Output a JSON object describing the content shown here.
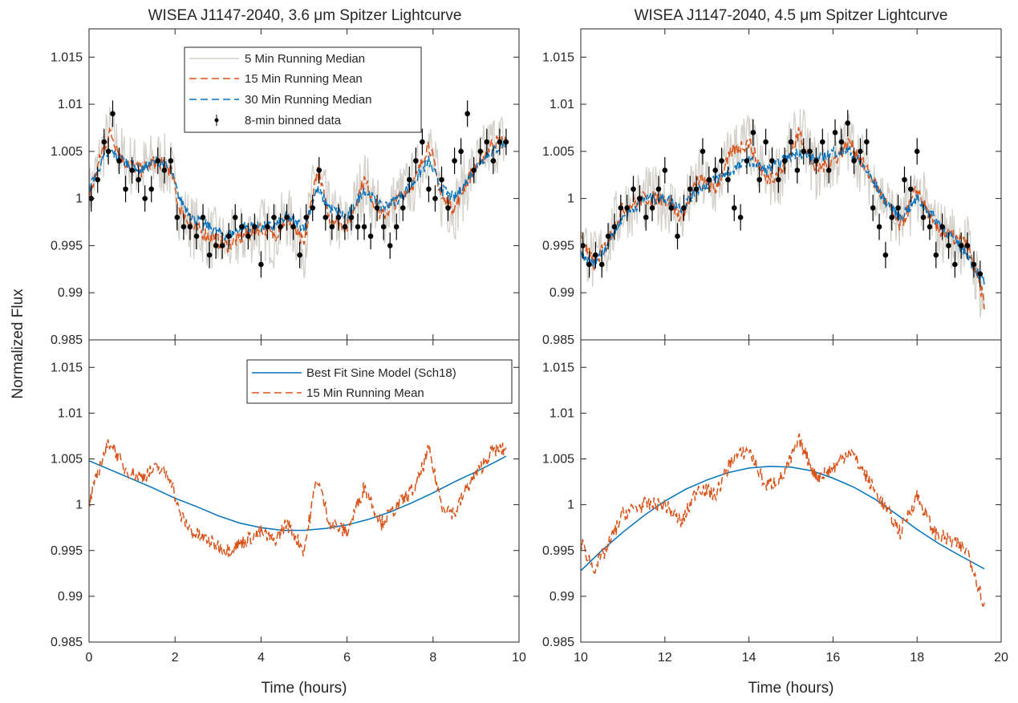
{
  "colors": {
    "median5": "#d3cfc9",
    "mean15": "#d95319",
    "median30": "#0072bd",
    "binned": "#000000",
    "model": "#0072bd",
    "axis": "#262626"
  },
  "chart_data": {
    "type": "line",
    "ylabel": "Normalized Flux",
    "ylim": [
      0.985,
      1.018
    ],
    "yticks": [
      "1.015",
      "1.01",
      "1.005",
      "1",
      "0.995",
      "0.99",
      "0.985"
    ],
    "panels": [
      {
        "id": "top-left",
        "title": "WISEA J1147-2040, 3.6 μm Spitzer Lightcurve",
        "xlim": [
          0,
          10
        ],
        "legend": [
          "5 Min Running Median",
          "15 Min Running Mean",
          "30 Min Running Median",
          "8-min binned data"
        ],
        "series": [
          {
            "name": "15 Min Running Mean",
            "style": "dashed",
            "x": [
              0,
              0.3,
              0.5,
              0.8,
              1.2,
              1.6,
              1.9,
              2.1,
              2.4,
              2.8,
              3.2,
              3.6,
              4,
              4.3,
              4.6,
              5,
              5.3,
              5.6,
              6,
              6.4,
              6.8,
              7.2,
              7.6,
              7.9,
              8.2,
              8.5,
              8.8,
              9.1,
              9.4,
              9.7
            ],
            "y": [
              1.0,
              1.005,
              1.007,
              1.004,
              1.003,
              1.004,
              1.003,
              0.999,
              0.997,
              0.996,
              0.995,
              0.996,
              0.997,
              0.996,
              0.998,
              0.995,
              1.003,
              0.998,
              0.997,
              1.002,
              0.998,
              1.0,
              1.002,
              1.006,
              1.0,
              0.999,
              1.002,
              1.004,
              1.006,
              1.006
            ]
          },
          {
            "name": "30 Min Running Median",
            "style": "dashed",
            "x": [
              0,
              0.3,
              0.5,
              0.8,
              1.2,
              1.6,
              1.9,
              2.1,
              2.4,
              2.8,
              3.2,
              3.6,
              4,
              4.3,
              4.6,
              5,
              5.3,
              5.6,
              6,
              6.4,
              6.8,
              7.2,
              7.6,
              7.9,
              8.2,
              8.5,
              8.8,
              9.1,
              9.4,
              9.7
            ],
            "y": [
              1.001,
              1.004,
              1.005,
              1.004,
              1.003,
              1.004,
              1.003,
              1.0,
              0.998,
              0.997,
              0.996,
              0.997,
              0.997,
              0.997,
              0.998,
              0.997,
              1.001,
              0.999,
              0.998,
              1.001,
              0.999,
              1.0,
              1.002,
              1.004,
              1.001,
              1.0,
              1.002,
              1.004,
              1.005,
              1.006
            ]
          },
          {
            "name": "8-min binned data",
            "style": "markers",
            "x": [
              0.05,
              0.2,
              0.35,
              0.45,
              0.55,
              0.7,
              0.85,
              1.0,
              1.15,
              1.3,
              1.45,
              1.6,
              1.75,
              1.9,
              2.05,
              2.2,
              2.35,
              2.5,
              2.65,
              2.8,
              2.95,
              3.1,
              3.25,
              3.4,
              3.55,
              3.7,
              3.85,
              4.0,
              4.15,
              4.3,
              4.45,
              4.6,
              4.75,
              4.9,
              5.05,
              5.2,
              5.35,
              5.5,
              5.65,
              5.8,
              5.95,
              6.1,
              6.25,
              6.4,
              6.55,
              6.7,
              6.85,
              7.0,
              7.15,
              7.3,
              7.45,
              7.6,
              7.75,
              7.9,
              8.05,
              8.2,
              8.35,
              8.5,
              8.65,
              8.8,
              8.95,
              9.1,
              9.25,
              9.4,
              9.55,
              9.7
            ],
            "y": [
              1.0,
              1.002,
              1.006,
              1.005,
              1.009,
              1.004,
              1.001,
              1.003,
              1.002,
              1.0,
              1.001,
              1.004,
              1.003,
              1.004,
              0.998,
              0.997,
              0.997,
              0.996,
              0.998,
              0.994,
              0.995,
              0.995,
              0.996,
              0.998,
              0.997,
              0.996,
              0.997,
              0.993,
              0.997,
              0.998,
              0.997,
              0.998,
              0.997,
              0.994,
              0.998,
              0.999,
              1.003,
              0.998,
              0.997,
              0.998,
              0.997,
              0.998,
              0.997,
              0.997,
              0.996,
              0.999,
              0.997,
              0.995,
              0.997,
              0.999,
              1.002,
              1.004,
              1.006,
              1.001,
              1.0,
              1.002,
              0.999,
              1.004,
              1.005,
              1.009,
              1.003,
              1.005,
              1.006,
              1.004,
              1.006,
              1.006
            ]
          }
        ]
      },
      {
        "id": "top-right",
        "title": "WISEA J1147-2040, 4.5 μm Spitzer Lightcurve",
        "xlim": [
          10,
          20
        ],
        "series": [
          {
            "name": "15 Min Running Mean",
            "style": "dashed",
            "x": [
              10,
              10.3,
              10.6,
              11,
              11.5,
              12,
              12.4,
              12.8,
              13.2,
              13.6,
              14,
              14.4,
              14.8,
              15.2,
              15.6,
              16,
              16.4,
              16.8,
              17.2,
              17.6,
              18,
              18.4,
              18.8,
              19.2,
              19.6
            ],
            "y": [
              0.996,
              0.993,
              0.995,
              0.999,
              1.0,
              1.0,
              0.998,
              1.002,
              1.001,
              1.005,
              1.006,
              1.002,
              1.003,
              1.007,
              1.003,
              1.004,
              1.006,
              1.003,
              1.0,
              0.997,
              1.001,
              0.997,
              0.996,
              0.995,
              0.989
            ]
          },
          {
            "name": "30 Min Running Median",
            "style": "dashed",
            "x": [
              10,
              10.3,
              10.6,
              11,
              11.5,
              12,
              12.4,
              12.8,
              13.2,
              13.6,
              14,
              14.4,
              14.8,
              15.2,
              15.6,
              16,
              16.4,
              16.8,
              17.2,
              17.6,
              18,
              18.4,
              18.8,
              19.2,
              19.6
            ],
            "y": [
              0.994,
              0.993,
              0.995,
              0.998,
              1.0,
              1.0,
              0.999,
              1.001,
              1.002,
              1.003,
              1.004,
              1.003,
              1.004,
              1.005,
              1.004,
              1.005,
              1.005,
              1.003,
              1.0,
              0.998,
              1.0,
              0.998,
              0.996,
              0.994,
              0.991
            ]
          },
          {
            "name": "8-min binned data",
            "style": "markers",
            "x": [
              10.05,
              10.2,
              10.35,
              10.5,
              10.65,
              10.8,
              10.95,
              11.1,
              11.25,
              11.4,
              11.55,
              11.7,
              11.85,
              12.0,
              12.15,
              12.3,
              12.45,
              12.6,
              12.75,
              12.9,
              13.05,
              13.2,
              13.35,
              13.5,
              13.65,
              13.8,
              13.95,
              14.1,
              14.25,
              14.4,
              14.55,
              14.7,
              14.85,
              15.0,
              15.15,
              15.3,
              15.45,
              15.6,
              15.75,
              15.9,
              16.05,
              16.2,
              16.35,
              16.5,
              16.65,
              16.8,
              16.95,
              17.1,
              17.25,
              17.4,
              17.55,
              17.7,
              17.85,
              18.0,
              18.15,
              18.3,
              18.45,
              18.6,
              18.75,
              18.9,
              19.05,
              19.2,
              19.35,
              19.5
            ],
            "y": [
              0.995,
              0.993,
              0.994,
              0.993,
              0.996,
              0.997,
              0.999,
              0.999,
              1.001,
              1.0,
              0.998,
              0.999,
              1.001,
              1.003,
              0.999,
              0.996,
              0.999,
              1.001,
              1.001,
              1.005,
              1.002,
              1.003,
              1.004,
              1.002,
              0.999,
              0.998,
              1.004,
              1.007,
              1.002,
              1.006,
              1.004,
              1.002,
              1.004,
              1.006,
              1.003,
              1.005,
              1.005,
              1.004,
              1.006,
              1.003,
              1.007,
              1.006,
              1.008,
              1.004,
              1.005,
              1.006,
              0.999,
              0.997,
              0.994,
              0.998,
              0.999,
              1.002,
              1.001,
              1.005,
              0.998,
              0.997,
              0.994,
              0.997,
              0.995,
              0.993,
              0.995,
              0.995,
              0.993,
              0.992
            ]
          }
        ]
      },
      {
        "id": "bottom-left",
        "xlim": [
          0,
          10
        ],
        "xlabel": "Time (hours)",
        "xticks": [
          "0",
          "2",
          "4",
          "6",
          "8",
          "10"
        ],
        "legend": [
          "Best Fit Sine Model (Sch18)",
          "15 Min Running Mean"
        ],
        "series": [
          {
            "name": "Best Fit Sine Model (Sch18)",
            "style": "solid",
            "x": [
              0,
              0.5,
              1,
              1.5,
              2,
              2.5,
              3,
              3.5,
              4,
              4.5,
              5,
              5.5,
              6,
              6.5,
              7,
              7.5,
              8,
              8.5,
              9,
              9.5,
              9.7
            ],
            "y": [
              1.0048,
              1.0038,
              1.0028,
              1.0018,
              1.0007,
              0.9998,
              0.9988,
              0.998,
              0.9975,
              0.9972,
              0.9972,
              0.9974,
              0.9978,
              0.9984,
              0.9992,
              1.0002,
              1.0013,
              1.0025,
              1.0036,
              1.0048,
              1.0053
            ]
          },
          {
            "name": "15 Min Running Mean",
            "style": "dashed",
            "x": [
              0,
              0.3,
              0.5,
              0.8,
              1.2,
              1.6,
              1.9,
              2.1,
              2.4,
              2.8,
              3.2,
              3.6,
              4,
              4.3,
              4.6,
              5,
              5.3,
              5.6,
              6,
              6.4,
              6.8,
              7.2,
              7.6,
              7.9,
              8.2,
              8.5,
              8.8,
              9.1,
              9.4,
              9.7
            ],
            "y": [
              1.0,
              1.005,
              1.007,
              1.004,
              1.003,
              1.004,
              1.003,
              0.999,
              0.997,
              0.996,
              0.995,
              0.996,
              0.997,
              0.996,
              0.998,
              0.995,
              1.003,
              0.998,
              0.997,
              1.002,
              0.998,
              1.0,
              1.002,
              1.006,
              1.0,
              0.999,
              1.002,
              1.004,
              1.006,
              1.006
            ]
          }
        ]
      },
      {
        "id": "bottom-right",
        "xlim": [
          10,
          20
        ],
        "xlabel": "Time (hours)",
        "xticks": [
          "10",
          "12",
          "14",
          "16",
          "18",
          "20"
        ],
        "series": [
          {
            "name": "Best Fit Sine Model (Sch18)",
            "style": "solid",
            "x": [
              10,
              10.5,
              11,
              11.5,
              12,
              12.5,
              13,
              13.5,
              14,
              14.5,
              15,
              15.5,
              16,
              16.5,
              17,
              17.5,
              18,
              18.5,
              19,
              19.6
            ],
            "y": [
              0.9928,
              0.995,
              0.997,
              0.9988,
              1.0004,
              1.0017,
              1.0027,
              1.0035,
              1.004,
              1.0042,
              1.0041,
              1.0037,
              1.0029,
              1.0019,
              1.0006,
              0.999,
              0.9973,
              0.9958,
              0.9945,
              0.993
            ]
          },
          {
            "name": "15 Min Running Mean",
            "style": "dashed",
            "x": [
              10,
              10.3,
              10.6,
              11,
              11.5,
              12,
              12.4,
              12.8,
              13.2,
              13.6,
              14,
              14.4,
              14.8,
              15.2,
              15.6,
              16,
              16.4,
              16.8,
              17.2,
              17.6,
              18,
              18.4,
              18.8,
              19.2,
              19.6
            ],
            "y": [
              0.996,
              0.993,
              0.995,
              0.999,
              1.0,
              1.0,
              0.998,
              1.002,
              1.001,
              1.005,
              1.006,
              1.002,
              1.003,
              1.007,
              1.003,
              1.004,
              1.006,
              1.003,
              1.0,
              0.997,
              1.001,
              0.997,
              0.996,
              0.995,
              0.989
            ]
          }
        ]
      }
    ]
  }
}
